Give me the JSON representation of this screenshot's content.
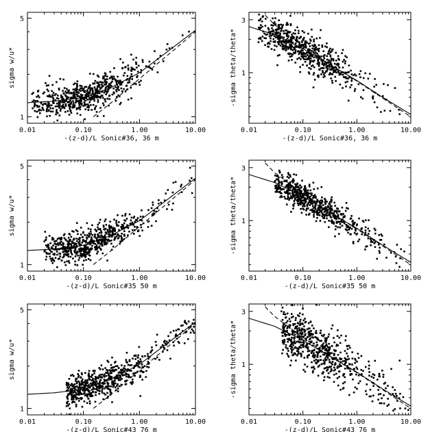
{
  "chart_data": [
    {
      "type": "scatter",
      "xlabel": "-(z-d)/L Sonic#36, 36 m",
      "ylabel": "sigma w/u*",
      "xscale": "log",
      "yscale": "log",
      "xlim": [
        0.01,
        10
      ],
      "ylim": [
        0.9,
        5.5
      ],
      "xticks": [
        "0.01",
        "0.10",
        "1.00",
        "10.00"
      ],
      "yticks": [
        "1",
        "5"
      ],
      "scatter": {
        "xrange": [
          0.012,
          9.0
        ],
        "ymin_intercept": 1.25,
        "ymax_at_10": 4.0,
        "spread": 0.11
      },
      "curves": [
        {
          "style": "solid",
          "x": [
            0.01,
            0.03,
            0.1,
            0.3,
            1,
            3,
            10
          ],
          "y": [
            1.26,
            1.29,
            1.37,
            1.6,
            2.05,
            2.85,
            4.1
          ]
        },
        {
          "style": "dashed",
          "x": [
            0.15,
            0.3,
            1,
            3,
            10
          ],
          "y": [
            1.0,
            1.24,
            1.86,
            2.68,
            4.0
          ]
        }
      ]
    },
    {
      "type": "scatter",
      "xlabel": "-(z-d)/L Sonic#36, 36 m",
      "ylabel": "-sigma theta/theta*",
      "xscale": "log",
      "yscale": "log",
      "xlim": [
        0.01,
        10
      ],
      "ylim": [
        0.35,
        3.5
      ],
      "xticks": [
        "0.01",
        "0.10",
        "1.00",
        "10.00"
      ],
      "yticks": [
        "1",
        "3"
      ],
      "scatter": {
        "xrange": [
          0.015,
          7.0
        ],
        "spread": 0.16
      },
      "curves": [
        {
          "style": "solid",
          "x": [
            0.01,
            0.03,
            0.1,
            0.3,
            1,
            3,
            10
          ],
          "y": [
            2.6,
            2.2,
            1.65,
            1.2,
            0.85,
            0.6,
            0.42
          ]
        },
        {
          "style": "dashed",
          "x": [
            0.02,
            0.03,
            0.1,
            0.3,
            1,
            3,
            10
          ],
          "y": [
            3.3,
            2.7,
            1.75,
            1.2,
            0.84,
            0.59,
            0.4
          ]
        }
      ]
    },
    {
      "type": "scatter",
      "xlabel": "-(z-d)/L Sonic#35 50 m",
      "ylabel": "sigma w/u*",
      "xscale": "log",
      "yscale": "log",
      "xlim": [
        0.01,
        10
      ],
      "ylim": [
        0.9,
        5.5
      ],
      "xticks": [
        "0.01",
        "0.10",
        "1.00",
        "10.00"
      ],
      "yticks": [
        "1",
        "5"
      ],
      "scatter": {
        "xrange": [
          0.02,
          9.0
        ],
        "ymin_intercept": 1.25,
        "ymax_at_10": 4.0,
        "spread": 0.1
      },
      "curves": [
        {
          "style": "solid",
          "x": [
            0.01,
            0.03,
            0.1,
            0.3,
            1,
            3,
            10
          ],
          "y": [
            1.26,
            1.29,
            1.37,
            1.6,
            2.05,
            2.85,
            4.1
          ]
        },
        {
          "style": "dashed",
          "x": [
            0.15,
            0.3,
            1,
            3,
            10
          ],
          "y": [
            1.0,
            1.24,
            1.86,
            2.68,
            4.0
          ]
        }
      ]
    },
    {
      "type": "scatter",
      "xlabel": "-(z-d)/L Sonic#35 50 m",
      "ylabel": "-sigma theta/theta*",
      "xscale": "log",
      "yscale": "log",
      "xlim": [
        0.01,
        10
      ],
      "ylim": [
        0.35,
        3.5
      ],
      "xticks": [
        "0.01",
        "0.10",
        "1.00",
        "10.00"
      ],
      "yticks": [
        "1",
        "3"
      ],
      "scatter": {
        "xrange": [
          0.03,
          8.0
        ],
        "spread": 0.13
      },
      "curves": [
        {
          "style": "solid",
          "x": [
            0.01,
            0.03,
            0.1,
            0.3,
            1,
            3,
            10
          ],
          "y": [
            2.6,
            2.2,
            1.65,
            1.2,
            0.85,
            0.6,
            0.42
          ]
        },
        {
          "style": "dashed",
          "x": [
            0.02,
            0.03,
            0.1,
            0.3,
            1,
            3,
            10
          ],
          "y": [
            3.3,
            2.7,
            1.75,
            1.2,
            0.84,
            0.59,
            0.4
          ]
        }
      ]
    },
    {
      "type": "scatter",
      "xlabel": "-(z-d)/L Sonic#43 76 m",
      "ylabel": "sigma w/u*",
      "xscale": "log",
      "yscale": "log",
      "xlim": [
        0.01,
        10
      ],
      "ylim": [
        0.9,
        5.5
      ],
      "xticks": [
        "0.01",
        "0.10",
        "1.00",
        "10.00"
      ],
      "yticks": [
        "1",
        "5"
      ],
      "scatter": {
        "xrange": [
          0.05,
          9.5
        ],
        "ymin_intercept": 1.25,
        "ymax_at_10": 3.8,
        "spread": 0.11
      },
      "curves": [
        {
          "style": "solid",
          "x": [
            0.01,
            0.03,
            0.1,
            0.3,
            1,
            3,
            10
          ],
          "y": [
            1.26,
            1.29,
            1.37,
            1.6,
            2.05,
            2.85,
            4.1
          ]
        },
        {
          "style": "dashed",
          "x": [
            0.15,
            0.3,
            1,
            3,
            10
          ],
          "y": [
            1.0,
            1.24,
            1.86,
            2.68,
            4.0
          ]
        }
      ]
    },
    {
      "type": "scatter",
      "xlabel": "-(z-d)/L Sonic#43 76 m",
      "ylabel": "-sigma theta/theta*",
      "xscale": "log",
      "yscale": "log",
      "xlim": [
        0.01,
        10
      ],
      "ylim": [
        0.35,
        3.5
      ],
      "xticks": [
        "0.01",
        "0.10",
        "1.00",
        "10.00"
      ],
      "yticks": [
        "1",
        "3"
      ],
      "scatter": {
        "xrange": [
          0.04,
          9.0
        ],
        "spread": 0.22
      },
      "curves": [
        {
          "style": "solid",
          "x": [
            0.01,
            0.03,
            0.1,
            0.3,
            1,
            3,
            10
          ],
          "y": [
            2.6,
            2.2,
            1.65,
            1.2,
            0.85,
            0.6,
            0.42
          ]
        },
        {
          "style": "dashed",
          "x": [
            0.02,
            0.03,
            0.1,
            0.3,
            1,
            3,
            10
          ],
          "y": [
            3.3,
            2.7,
            1.75,
            1.2,
            0.84,
            0.59,
            0.4
          ]
        }
      ]
    }
  ]
}
